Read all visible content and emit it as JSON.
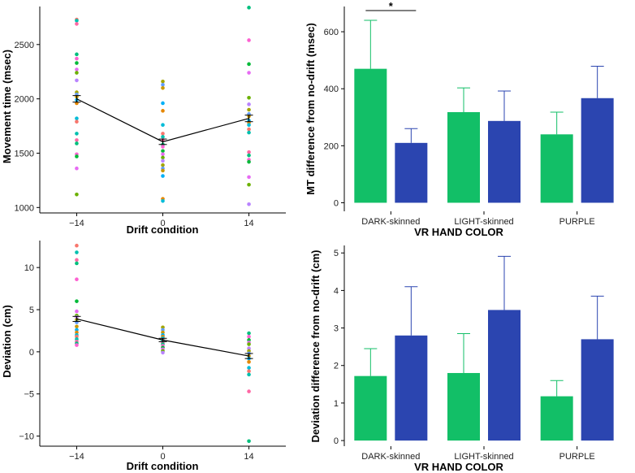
{
  "colors": {
    "green": "#12BF67",
    "blue": "#2B45B0",
    "dot_palette": [
      "#F8766D",
      "#E58700",
      "#C99800",
      "#A3A500",
      "#6BB100",
      "#00BA38",
      "#00BF7D",
      "#00C0AF",
      "#00BCD8",
      "#00B0F6",
      "#619CFF",
      "#B983FF",
      "#E76BF3",
      "#FD61D1",
      "#FF67A4"
    ]
  },
  "chart_data": [
    {
      "id": "A",
      "type": "scatter",
      "xlabel": "Drift condition",
      "ylabel": "Movement time (msec)",
      "x_ticks": [
        -14,
        0,
        14
      ],
      "y_ticks": [
        1000,
        1500,
        2000,
        2500
      ],
      "xlim": [
        -20,
        20
      ],
      "ylim": [
        950,
        2850
      ],
      "mean_line": {
        "x": [
          -14,
          0,
          14
        ],
        "y": [
          2000,
          1605,
          1820
        ],
        "se": [
          30,
          25,
          30
        ]
      },
      "points": [
        {
          "x": -14,
          "y": [
            2730,
            2720,
            2690,
            2410,
            2370,
            2330,
            2270,
            2240,
            2170,
            2060,
            2040,
            2020,
            1990,
            1960,
            1820,
            1790,
            1680,
            1620,
            1590,
            1490,
            1470,
            1360,
            1120
          ]
        },
        {
          "x": 0,
          "y": [
            2160,
            2130,
            2100,
            1960,
            1890,
            1760,
            1680,
            1650,
            1620,
            1580,
            1560,
            1520,
            1490,
            1460,
            1430,
            1390,
            1360,
            1340,
            1290,
            1080,
            1060
          ]
        },
        {
          "x": 14,
          "y": [
            2840,
            2540,
            2320,
            2240,
            2010,
            1950,
            1900,
            1860,
            1840,
            1800,
            1780,
            1760,
            1720,
            1690,
            1510,
            1480,
            1440,
            1420,
            1280,
            1210,
            1030
          ]
        }
      ]
    },
    {
      "id": "B",
      "type": "bar",
      "xlabel": "VR HAND COLOR",
      "ylabel": "MT difference from no-drift (msec)",
      "categories": [
        "DARK-skinned",
        "LIGHT-skinned",
        "PURPLE"
      ],
      "ylim": [
        -30,
        680
      ],
      "y_ticks": [
        0,
        200,
        400,
        600
      ],
      "series": [
        {
          "name": "green",
          "values": [
            470,
            318,
            240
          ],
          "errors": [
            170,
            85,
            78
          ]
        },
        {
          "name": "blue",
          "values": [
            210,
            287,
            367
          ],
          "errors": [
            50,
            105,
            112
          ]
        }
      ],
      "significance": "*"
    },
    {
      "id": "C",
      "type": "scatter",
      "xlabel": "Drift condition",
      "ylabel": "Deviation (cm)",
      "x_ticks": [
        -14,
        0,
        14
      ],
      "y_ticks": [
        -10,
        -5,
        0,
        5,
        10
      ],
      "xlim": [
        -20,
        20
      ],
      "ylim": [
        -11.2,
        13.2
      ],
      "mean_line": {
        "x": [
          -14,
          0,
          14
        ],
        "y": [
          3.9,
          1.4,
          -0.5
        ],
        "se": [
          0.3,
          0.2,
          0.3
        ]
      },
      "points": [
        {
          "x": -14,
          "y": [
            12.6,
            11.8,
            10.9,
            10.5,
            8.6,
            6.0,
            4.8,
            4.3,
            4.1,
            3.8,
            3.5,
            3.0,
            2.6,
            2.3,
            2.0,
            1.8,
            1.5,
            1.2,
            1.0,
            0.8
          ]
        },
        {
          "x": 0,
          "y": [
            2.9,
            2.6,
            2.3,
            2.0,
            1.8,
            1.6,
            1.4,
            1.3,
            1.1,
            0.9,
            0.7,
            0.5,
            0.3,
            0.1,
            -0.1
          ]
        },
        {
          "x": 14,
          "y": [
            2.2,
            1.8,
            1.4,
            1.1,
            0.9,
            0.4,
            0.1,
            -0.2,
            -0.5,
            -0.8,
            -1.2,
            -1.9,
            -2.3,
            -2.7,
            -4.7,
            -10.6
          ]
        }
      ]
    },
    {
      "id": "D",
      "type": "bar",
      "xlabel": "VR HAND COLOR",
      "ylabel": "Deviation difference from no-drift (cm)",
      "categories": [
        "DARK-skinned",
        "LIGHT-skinned",
        "PURPLE"
      ],
      "ylim": [
        -0.15,
        5.2
      ],
      "y_ticks": [
        0,
        1,
        2,
        3,
        4,
        5
      ],
      "series": [
        {
          "name": "green",
          "values": [
            1.72,
            1.8,
            1.18
          ],
          "errors": [
            0.73,
            1.05,
            0.42
          ]
        },
        {
          "name": "blue",
          "values": [
            2.8,
            3.48,
            2.7
          ],
          "errors": [
            1.3,
            1.43,
            1.15
          ]
        }
      ]
    }
  ]
}
